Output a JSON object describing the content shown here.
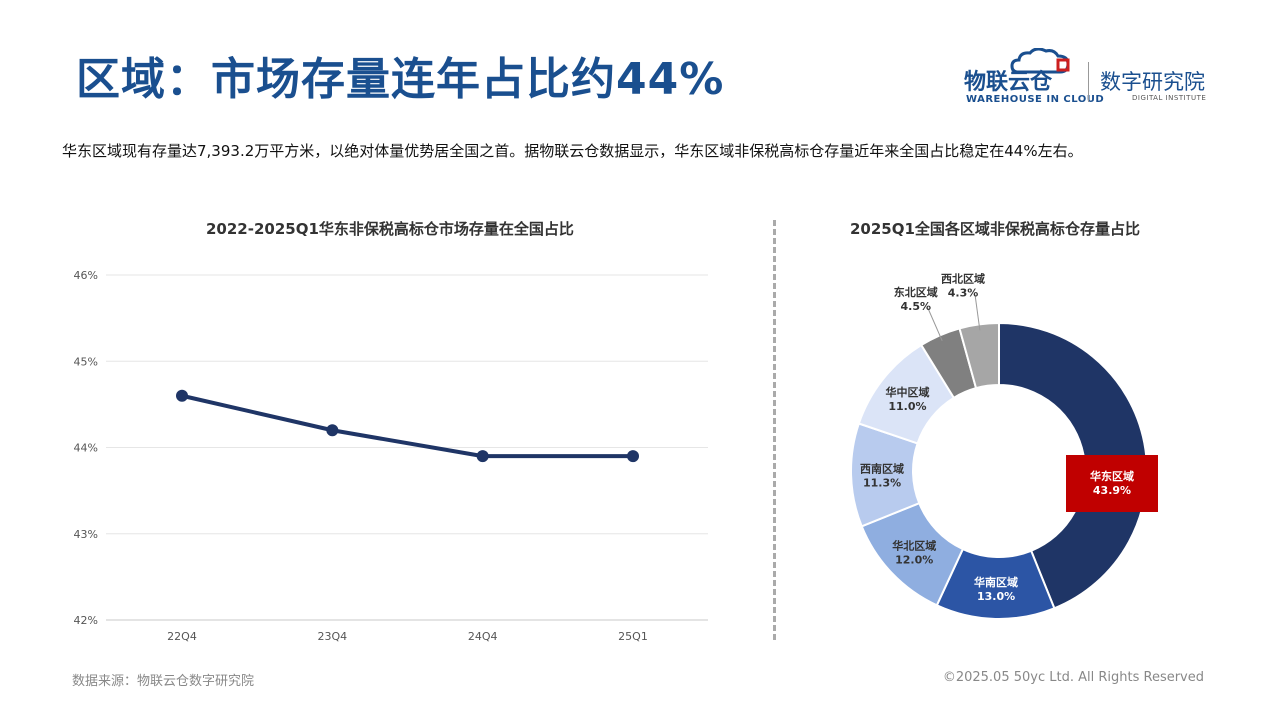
{
  "page": {
    "title": "区域：市场存量连年占比约44%",
    "description": "华东区域现有存量达7,393.2万平方米，以绝对体量优势居全国之首。据物联云仓数据显示，华东区域非保税高标仓存量近年来全国占比稳定在44%左右。",
    "source": "数据来源：物联云仓数字研究院",
    "copyright": "©2025.05 50yc Ltd. All Rights Reserved"
  },
  "logo": {
    "main": "物联云仓",
    "sub": "WAREHOUSE IN CLOUD",
    "institute": "数字研究院",
    "institute_sub": "DIGITAL INSTITUTE",
    "brand_color": "#1a4f8f",
    "accent_color": "#cc1f1f"
  },
  "chart_data": [
    {
      "type": "line",
      "title": "2022-2025Q1华东非保税高标仓市场存量在全国占比",
      "categories": [
        "22Q4",
        "23Q4",
        "24Q4",
        "25Q1"
      ],
      "series": [
        {
          "values": [
            44.6,
            44.2,
            43.9,
            43.9
          ],
          "color": "#1f3566"
        }
      ],
      "ylim": [
        42,
        46
      ],
      "yticks": [
        "42%",
        "43%",
        "44%",
        "45%",
        "46%"
      ],
      "grid": true
    },
    {
      "type": "pie",
      "title": "2025Q1全国各区域非保税高标仓存量占比",
      "slices": [
        {
          "label": "华东区域",
          "value": 43.9,
          "display": "43.9%",
          "color": "#1f3566"
        },
        {
          "label": "华南区域",
          "value": 13.0,
          "display": "13.0%",
          "color": "#2c55a5"
        },
        {
          "label": "华北区域",
          "value": 12.0,
          "display": "12.0%",
          "color": "#8faee0"
        },
        {
          "label": "西南区域",
          "value": 11.3,
          "display": "11.3%",
          "color": "#b8cbee"
        },
        {
          "label": "华中区域",
          "value": 11.0,
          "display": "11.0%",
          "color": "#dbe4f7"
        },
        {
          "label": "东北区域",
          "value": 4.5,
          "display": "4.5%",
          "color": "#808080"
        },
        {
          "label": "西北区域",
          "value": 4.3,
          "display": "4.3%",
          "color": "#a6a6a6"
        }
      ],
      "highlight": {
        "label": "华东区域",
        "color": "#c00000"
      }
    }
  ]
}
